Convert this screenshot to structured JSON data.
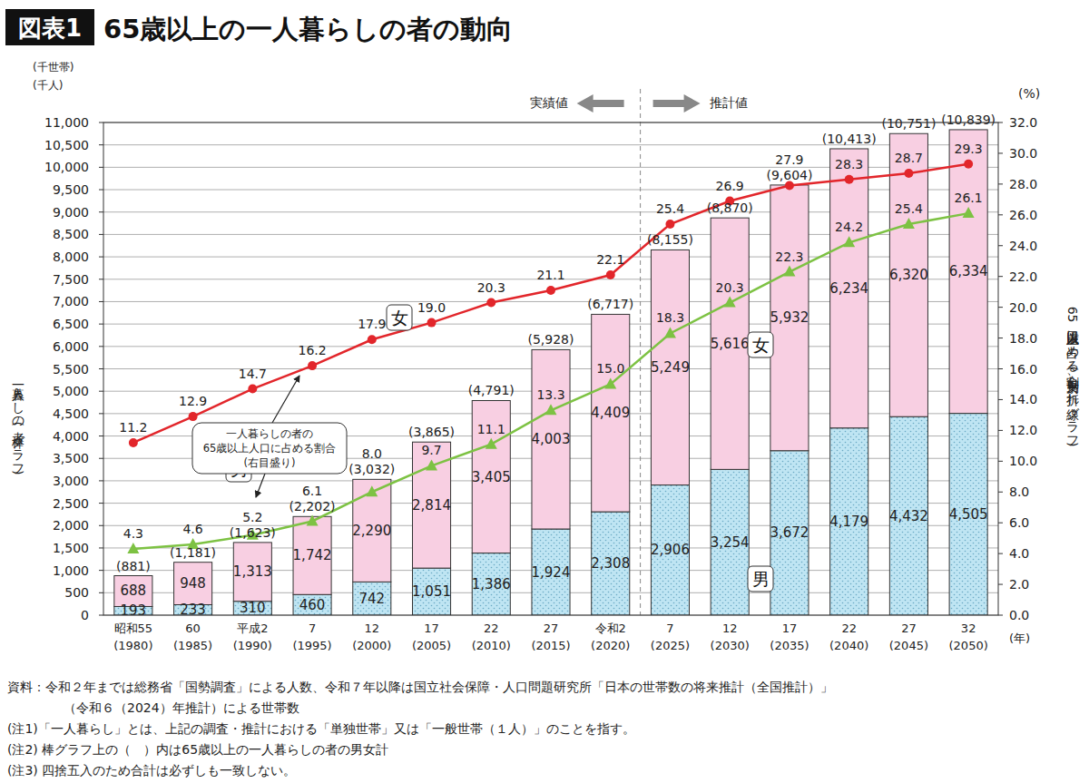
{
  "chart_data": {
    "type": "bar",
    "figure_label": "図表1",
    "title": "65歳以上の一人暮らしの者の動向",
    "ylabel": "一人暮らしの者(棒グラフ)",
    "y_unit": [
      "(千世帯)",
      "(千人)"
    ],
    "y2label": "65歳以上人口に占める割合(男女別、折れ線グラフ)",
    "y2_unit": "(%)",
    "x_unit": "(年)",
    "annotations": [
      "実績値",
      "推計値",
      "一人暮らしの者の\n65歳以上人口に占める割合\n(右目盛り)"
    ],
    "notes": [
      "資料：令和２年までは総務省「国勢調査」による人数、令和７年以降は国立社会保障・人口問題研究所「日本の世帯数の将来推計（全国推計）」",
      "（令和６（2024）年推計）による世帯数",
      "(注1)「一人暮らし」とは、上記の調査・推計における「単独世帯」又は「一般世帯（１人）」のことを指す。",
      "(注2) 棒グラフ上の（　）内は65歳以上の一人暮らしの者の男女計",
      "(注3) 四捨五入のため合計は必ずしも一致しない。"
    ],
    "categories": [
      "昭和55\n(1980)",
      "60\n(1985)",
      "平成2\n(1990)",
      "7\n(1995)",
      "12\n(2000)",
      "17\n(2005)",
      "22\n(2010)",
      "27\n(2015)",
      "令和2\n(2020)",
      "7\n(2025)",
      "12\n(2030)",
      "17\n(2035)",
      "22\n(2040)",
      "27\n(2045)",
      "32\n(2050)"
    ],
    "stacked": true,
    "data_labels": true,
    "grid": true,
    "ylim": [
      0,
      11000
    ],
    "yticks": [
      0,
      500,
      {
        "value": 1000,
        "label": "1,000"
      },
      {
        "value": 1500,
        "label": "1,500"
      },
      {
        "value": 2000,
        "label": "2,000"
      },
      {
        "value": 2500,
        "label": "2,500"
      },
      {
        "value": 3000,
        "label": "3,000"
      },
      {
        "value": 3500,
        "label": "3,500"
      },
      {
        "value": 4000,
        "label": "4,000"
      },
      {
        "value": 4500,
        "label": "4,500"
      },
      {
        "value": 5000,
        "label": "5,000"
      },
      {
        "value": 5500,
        "label": "5,500"
      },
      {
        "value": 6000,
        "label": "6,000"
      },
      {
        "value": 6500,
        "label": "6,500"
      },
      {
        "value": 7000,
        "label": "7,000"
      },
      {
        "value": 7500,
        "label": "7,500"
      },
      {
        "value": 8000,
        "label": "8,000"
      },
      {
        "value": 8500,
        "label": "8,500"
      },
      {
        "value": 9000,
        "label": "9,000"
      },
      {
        "value": 9500,
        "label": "9,500"
      },
      {
        "value": 10000,
        "label": "10,000"
      },
      {
        "value": 10500,
        "label": "10,500"
      },
      {
        "value": 11000,
        "label": "11,000"
      }
    ],
    "y2lim": [
      0,
      32
    ],
    "y2ticks": [
      {
        "value": 0,
        "label": "0.0"
      },
      {
        "value": 2,
        "label": "2.0"
      },
      {
        "value": 4,
        "label": "4.0"
      },
      {
        "value": 6,
        "label": "6.0"
      },
      {
        "value": 8,
        "label": "8.0"
      },
      {
        "value": 10,
        "label": "10.0"
      },
      {
        "value": 12,
        "label": "12.0"
      },
      {
        "value": 14,
        "label": "14.0"
      },
      {
        "value": 16,
        "label": "16.0"
      },
      {
        "value": 18,
        "label": "18.0"
      },
      {
        "value": 20,
        "label": "20.0"
      },
      {
        "value": 22,
        "label": "22.0"
      },
      {
        "value": 24,
        "label": "24.0"
      },
      {
        "value": 26,
        "label": "26.0"
      },
      {
        "value": 28,
        "label": "28.0"
      },
      {
        "value": 30,
        "label": "30.0"
      },
      {
        "value": 32,
        "label": "32.0"
      }
    ],
    "series": [
      {
        "name": "男",
        "type": "bar",
        "color": "#bfe5f3",
        "values": [
          193,
          233,
          310,
          460,
          742,
          1051,
          1386,
          1924,
          2308,
          2906,
          3254,
          3672,
          4179,
          4432,
          4505
        ],
        "value_labels": [
          "193",
          "233",
          "310",
          "460",
          "742",
          "1,051",
          "1,386",
          "1,924",
          "2,308",
          "2,906",
          "3,254",
          "3,672",
          "4,179",
          "4,432",
          "4,505"
        ]
      },
      {
        "name": "女",
        "type": "bar",
        "color": "#f8cfe2",
        "values": [
          688,
          948,
          1313,
          1742,
          2290,
          2814,
          3405,
          4003,
          4409,
          5249,
          5616,
          5932,
          6234,
          6320,
          6334
        ],
        "value_labels": [
          "688",
          "948",
          "1,313",
          "1,742",
          "2,290",
          "2,814",
          "3,405",
          "4,003",
          "4,409",
          "5,249",
          "5,616",
          "5,932",
          "6,234",
          "6,320",
          "6,334"
        ]
      },
      {
        "name": "女",
        "type": "line",
        "axis": "y2",
        "color": "#e2262b",
        "marker": "circle",
        "values": [
          11.2,
          12.9,
          14.7,
          16.2,
          17.9,
          19.0,
          20.3,
          21.1,
          22.1,
          25.4,
          26.9,
          27.9,
          28.3,
          28.7,
          29.3
        ],
        "value_labels": [
          "11.2",
          "12.9",
          "14.7",
          "16.2",
          "17.9",
          "19.0",
          "20.3",
          "21.1",
          "22.1",
          "25.4",
          "26.9",
          "27.9",
          "28.3",
          "28.7",
          "29.3"
        ]
      },
      {
        "name": "男",
        "type": "line",
        "axis": "y2",
        "color": "#7dc243",
        "marker": "triangle",
        "values": [
          4.3,
          4.6,
          5.2,
          6.1,
          8.0,
          9.7,
          11.1,
          13.3,
          15.0,
          18.3,
          20.3,
          22.3,
          24.2,
          25.4,
          26.1
        ],
        "value_labels": [
          "4.3",
          "4.6",
          "5.2",
          "6.1",
          "8.0",
          "9.7",
          "11.1",
          "13.3",
          "15.0",
          "18.3",
          "20.3",
          "22.3",
          "24.2",
          "25.4",
          "26.1"
        ]
      }
    ],
    "totals": {
      "values": [
        881,
        1181,
        1623,
        2202,
        3032,
        3865,
        4791,
        5928,
        6717,
        8155,
        8870,
        9604,
        10413,
        10751,
        10839
      ],
      "value_labels": [
        "(881)",
        "(1,181)",
        "(1,623)",
        "(2,202)",
        "(3,032)",
        "(3,865)",
        "(4,791)",
        "(5,928)",
        "(6,717)",
        "(8,155)",
        "(8,870)",
        "(9,604)",
        "(10,413)",
        "(10,751)",
        "(10,839)"
      ]
    }
  }
}
